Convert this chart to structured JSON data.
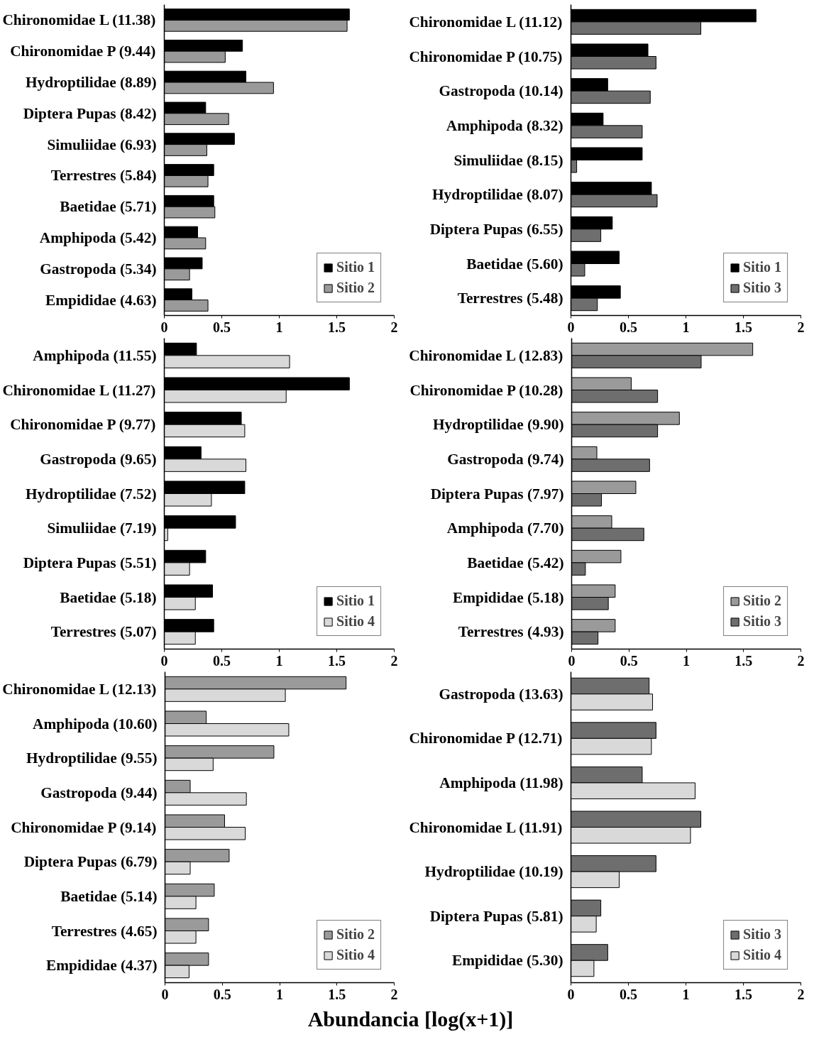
{
  "chart_data": [
    {
      "type": "bar",
      "orientation": "horizontal",
      "categories": [
        "Chironomidae L (11.38)",
        "Chironomidae P (9.44)",
        "Hydroptilidae (8.89)",
        "Diptera Pupas (8.42)",
        "Simuliidae (6.93)",
        "Terrestres (5.84)",
        "Baetidae (5.71)",
        "Amphipoda (5.42)",
        "Gastropoda (5.34)",
        "Empididae (4.63)"
      ],
      "series": [
        {
          "name": "Sitio 1",
          "color": "#000000",
          "values": [
            1.61,
            0.68,
            0.71,
            0.36,
            0.61,
            0.43,
            0.43,
            0.29,
            0.33,
            0.24
          ]
        },
        {
          "name": "Sitio 2",
          "color": "#9a9a9a",
          "values": [
            1.59,
            0.53,
            0.95,
            0.56,
            0.37,
            0.38,
            0.44,
            0.36,
            0.22,
            0.38
          ]
        }
      ],
      "xlim": [
        0,
        2
      ],
      "xticks": [
        0,
        0.5,
        1,
        1.5,
        2
      ],
      "legend": "bottom right",
      "grid": false
    },
    {
      "type": "bar",
      "orientation": "horizontal",
      "categories": [
        "Chironomidae L (11.12)",
        "Chironomidae P (10.75)",
        "Gastropoda (10.14)",
        "Amphipoda (8.32)",
        "Simuliidae (8.15)",
        "Hydroptilidae (8.07)",
        "Diptera Pupas (6.55)",
        "Baetidae (5.60)",
        "Terrestres (5.48)"
      ],
      "series": [
        {
          "name": "Sitio 1",
          "color": "#000000",
          "values": [
            1.61,
            0.67,
            0.32,
            0.28,
            0.62,
            0.7,
            0.36,
            0.42,
            0.43
          ]
        },
        {
          "name": "Sitio 3",
          "color": "#6e6e6e",
          "values": [
            1.13,
            0.74,
            0.69,
            0.62,
            0.05,
            0.75,
            0.26,
            0.12,
            0.23
          ]
        }
      ],
      "xlim": [
        0,
        2
      ],
      "xticks": [
        0,
        0.5,
        1,
        1.5,
        2
      ],
      "legend": "bottom right",
      "grid": false
    },
    {
      "type": "bar",
      "orientation": "horizontal",
      "categories": [
        "Amphipoda (11.55)",
        "Chironomidae L (11.27)",
        "Chironomidae P (9.77)",
        "Gastropoda (9.65)",
        "Hydroptilidae (7.52)",
        "Simuliidae (7.19)",
        "Diptera Pupas (5.51)",
        "Baetidae (5.18)",
        "Terrestres (5.07)"
      ],
      "series": [
        {
          "name": "Sitio 1",
          "color": "#000000",
          "values": [
            0.28,
            1.61,
            0.67,
            0.32,
            0.7,
            0.62,
            0.36,
            0.42,
            0.43
          ]
        },
        {
          "name": "Sitio 4",
          "color": "#d9d9d9",
          "values": [
            1.09,
            1.06,
            0.7,
            0.71,
            0.41,
            0.03,
            0.22,
            0.27,
            0.27
          ]
        }
      ],
      "xlim": [
        0,
        2
      ],
      "xticks": [
        0,
        0.5,
        1,
        1.5,
        2
      ],
      "legend": "bottom right",
      "grid": false
    },
    {
      "type": "bar",
      "orientation": "horizontal",
      "categories": [
        "Chironomidae L (12.83)",
        "Chironomidae P (10.28)",
        "Hydroptilidae (9.90)",
        "Gastropoda (9.74)",
        "Diptera Pupas (7.97)",
        "Amphipoda (7.70)",
        "Baetidae (5.42)",
        "Empididae (5.18)",
        "Terrestres (4.93)"
      ],
      "series": [
        {
          "name": "Sitio 2",
          "color": "#9a9a9a",
          "values": [
            1.58,
            0.52,
            0.94,
            0.22,
            0.56,
            0.35,
            0.43,
            0.38,
            0.38
          ]
        },
        {
          "name": "Sitio 3",
          "color": "#6e6e6e",
          "values": [
            1.13,
            0.75,
            0.75,
            0.68,
            0.26,
            0.63,
            0.12,
            0.32,
            0.23
          ]
        }
      ],
      "xlim": [
        0,
        2
      ],
      "xticks": [
        0,
        0.5,
        1,
        1.5,
        2
      ],
      "legend": "bottom right",
      "grid": false
    },
    {
      "type": "bar",
      "orientation": "horizontal",
      "categories": [
        "Chironomidae L (12.13)",
        "Amphipoda (10.60)",
        "Hydroptilidae (9.55)",
        "Gastropoda (9.44)",
        "Chironomidae P (9.14)",
        "Diptera Pupas (6.79)",
        "Baetidae (5.14)",
        "Terrestres (4.65)",
        "Empididae (4.37)"
      ],
      "series": [
        {
          "name": "Sitio 2",
          "color": "#9a9a9a",
          "values": [
            1.58,
            0.36,
            0.95,
            0.22,
            0.52,
            0.56,
            0.43,
            0.38,
            0.38
          ]
        },
        {
          "name": "Sitio 4",
          "color": "#d9d9d9",
          "values": [
            1.05,
            1.08,
            0.42,
            0.71,
            0.7,
            0.22,
            0.27,
            0.27,
            0.21
          ]
        }
      ],
      "xlim": [
        0,
        2
      ],
      "xticks": [
        0,
        0.5,
        1,
        1.5,
        2
      ],
      "legend": "bottom right",
      "grid": false
    },
    {
      "type": "bar",
      "orientation": "horizontal",
      "categories": [
        "Gastropoda (13.63)",
        "Chironomidae P (12.71)",
        "Amphipoda (11.98)",
        "Chironomidae L (11.91)",
        "Hydroptilidae (10.19)",
        "Diptera Pupas (5.81)",
        "Empididae (5.30)"
      ],
      "series": [
        {
          "name": "Sitio 3",
          "color": "#6e6e6e",
          "values": [
            0.68,
            0.74,
            0.62,
            1.13,
            0.74,
            0.26,
            0.32
          ]
        },
        {
          "name": "Sitio 4",
          "color": "#d9d9d9",
          "values": [
            0.71,
            0.7,
            1.08,
            1.04,
            0.42,
            0.22,
            0.2
          ]
        }
      ],
      "xlim": [
        0,
        2
      ],
      "xticks": [
        0,
        0.5,
        1,
        1.5,
        2
      ],
      "legend": "bottom right",
      "grid": false,
      "annotations": [
        "Abundancia [log(x+1)]"
      ]
    }
  ]
}
